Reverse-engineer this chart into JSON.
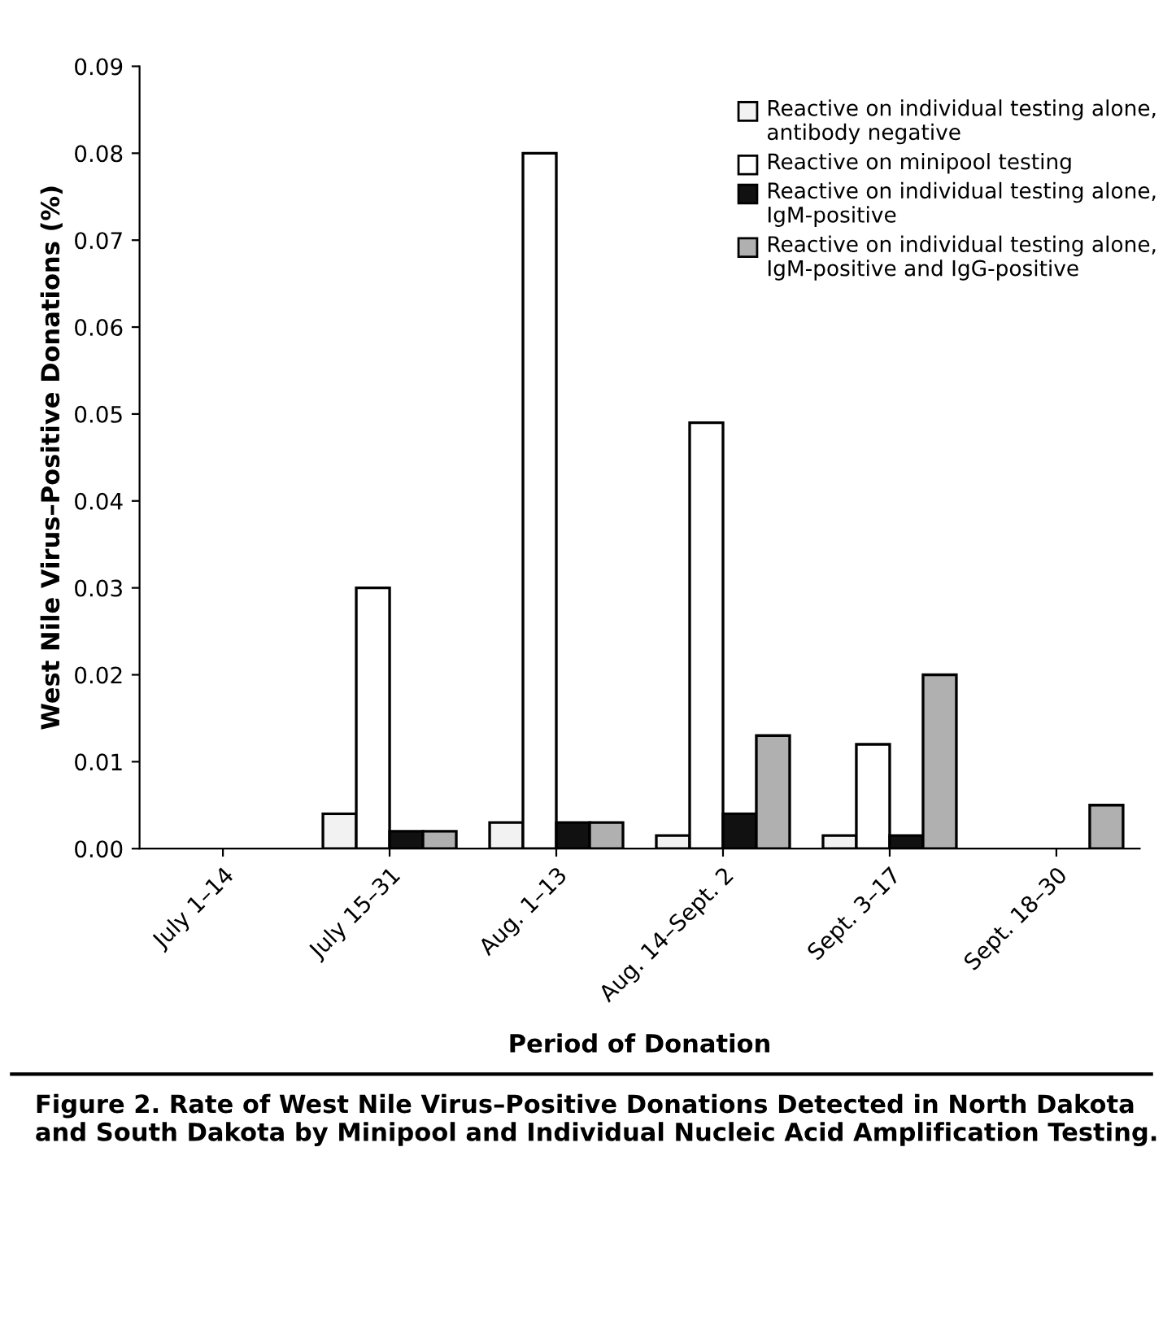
{
  "chart_data": {
    "type": "bar",
    "title": "Figure 2. Rate of West Nile Virus–Positive Donations Detected in North Dakota and South Dakota by Minipool and Individual Nucleic Acid Amplification Testing.",
    "xlabel": "Period of Donation",
    "ylabel": "West Nile Virus–Positive Donations (%)",
    "categories": [
      "July 1–14",
      "July 15–31",
      "Aug. 1–13",
      "Aug. 14–Sept. 2",
      "Sept. 3–17",
      "Sept. 18–30"
    ],
    "series": [
      {
        "name": "Reactive on individual testing alone, antibody negative",
        "color": "#f2f2f2",
        "values": [
          null,
          0.004,
          0.003,
          0.0015,
          0.0015,
          null
        ]
      },
      {
        "name": "Reactive on minipool testing",
        "color": "#ffffff",
        "values": [
          null,
          0.03,
          0.08,
          0.049,
          0.012,
          null
        ]
      },
      {
        "name": "Reactive on individual testing alone, IgM-positive",
        "color": "#111111",
        "values": [
          null,
          0.002,
          0.003,
          0.004,
          0.0015,
          null
        ]
      },
      {
        "name": "Reactive on individual testing alone, IgM-positive and IgG-positive",
        "color": "#b0b0b0",
        "values": [
          null,
          0.002,
          0.003,
          0.013,
          0.02,
          0.005
        ]
      }
    ],
    "ylim": [
      0,
      0.09
    ],
    "yticks": [
      {
        "value": 0,
        "label": "0.00"
      },
      0.01,
      0.02,
      0.03,
      0.04,
      0.05,
      0.06,
      0.07,
      0.08,
      0.09
    ],
    "grid": false,
    "legend": "top right"
  }
}
